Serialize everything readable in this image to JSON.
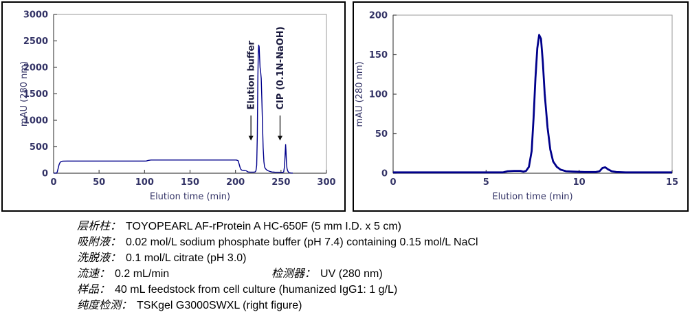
{
  "accent_colors": {
    "curve": "#00008B",
    "tick_label": "#333366",
    "plot_border": "#9a9a9a",
    "axis_line": "#4a4a4a",
    "panel_border": "#000000"
  },
  "chart_data": [
    {
      "type": "line",
      "name": "affinity-chromatogram",
      "title": "",
      "xlabel": "Elution time (min)",
      "ylabel": "mAU (280 nm)",
      "xlim": [
        0,
        300
      ],
      "ylim": [
        0,
        3000
      ],
      "x_ticks": [
        0,
        50,
        100,
        150,
        200,
        250,
        300
      ],
      "y_ticks": [
        0,
        500,
        1000,
        1500,
        2000,
        2500,
        3000
      ],
      "grid": false,
      "legend": "none",
      "line_color": "#00008B",
      "line_width": 1.4,
      "annotations": [
        {
          "text": "Elution buffer",
          "x": 217,
          "arrow_y_top": 1090,
          "arrow_y_tip": 615,
          "text_y_bottom": 1200
        },
        {
          "text": "CIP (0.1N-NaOH)",
          "x": 249,
          "arrow_y_top": 1090,
          "arrow_y_tip": 615,
          "text_y_bottom": 1200
        }
      ],
      "points": [
        [
          0,
          2
        ],
        [
          3,
          2
        ],
        [
          3.5,
          5
        ],
        [
          4,
          25
        ],
        [
          5,
          90
        ],
        [
          6,
          160
        ],
        [
          7,
          200
        ],
        [
          8,
          218
        ],
        [
          10,
          228
        ],
        [
          15,
          230
        ],
        [
          100,
          230
        ],
        [
          102,
          231
        ],
        [
          104,
          242
        ],
        [
          107,
          249
        ],
        [
          110,
          250
        ],
        [
          198,
          250
        ],
        [
          201,
          249
        ],
        [
          203,
          235
        ],
        [
          204,
          170
        ],
        [
          205,
          110
        ],
        [
          206,
          70
        ],
        [
          207,
          57
        ],
        [
          210,
          52
        ],
        [
          212,
          46
        ],
        [
          213,
          30
        ],
        [
          214,
          24
        ],
        [
          216,
          21
        ],
        [
          220,
          21
        ],
        [
          221.5,
          24
        ],
        [
          222.5,
          45
        ],
        [
          223.3,
          150
        ],
        [
          224,
          700
        ],
        [
          224.6,
          1800
        ],
        [
          225,
          2250
        ],
        [
          225.5,
          2420
        ],
        [
          226,
          2390
        ],
        [
          226.5,
          2200
        ],
        [
          227,
          2000
        ],
        [
          227.7,
          1910
        ],
        [
          228.3,
          1790
        ],
        [
          229,
          1400
        ],
        [
          229.7,
          900
        ],
        [
          230.4,
          480
        ],
        [
          231.2,
          220
        ],
        [
          232,
          120
        ],
        [
          233,
          85
        ],
        [
          234.5,
          60
        ],
        [
          236,
          45
        ],
        [
          238,
          32
        ],
        [
          240,
          24
        ],
        [
          243,
          20
        ],
        [
          248,
          18
        ],
        [
          252,
          17
        ],
        [
          253,
          25
        ],
        [
          254,
          140
        ],
        [
          254.7,
          420
        ],
        [
          255.1,
          540
        ],
        [
          255.5,
          430
        ],
        [
          256,
          200
        ],
        [
          256.6,
          90
        ],
        [
          257.4,
          45
        ],
        [
          258.2,
          22
        ],
        [
          259,
          11
        ],
        [
          260,
          6
        ],
        [
          261.5,
          3
        ],
        [
          263,
          2
        ]
      ]
    },
    {
      "type": "line",
      "name": "purity-check-chromatogram",
      "title": "",
      "xlabel": "Elution time (min)",
      "ylabel": "mAU (280 nm)",
      "xlim": [
        0,
        15
      ],
      "ylim": [
        0,
        200
      ],
      "x_ticks": [
        0,
        5,
        10,
        15
      ],
      "y_ticks": [
        0,
        50,
        100,
        150,
        200
      ],
      "grid": false,
      "legend": "none",
      "line_color": "#00008B",
      "line_width": 2.8,
      "annotations": [],
      "points": [
        [
          0,
          1
        ],
        [
          5.9,
          1
        ],
        [
          6.15,
          2.5
        ],
        [
          6.5,
          3
        ],
        [
          6.85,
          3
        ],
        [
          7.0,
          2
        ],
        [
          7.15,
          3
        ],
        [
          7.3,
          8
        ],
        [
          7.45,
          28
        ],
        [
          7.55,
          70
        ],
        [
          7.65,
          120
        ],
        [
          7.75,
          158
        ],
        [
          7.85,
          175
        ],
        [
          7.95,
          170
        ],
        [
          8.05,
          140
        ],
        [
          8.15,
          100
        ],
        [
          8.3,
          58
        ],
        [
          8.45,
          30
        ],
        [
          8.6,
          15
        ],
        [
          8.8,
          8
        ],
        [
          9.0,
          4.5
        ],
        [
          9.3,
          2.5
        ],
        [
          9.7,
          2
        ],
        [
          10.3,
          1.5
        ],
        [
          10.9,
          1.5
        ],
        [
          11.1,
          2.5
        ],
        [
          11.25,
          6.5
        ],
        [
          11.4,
          7.5
        ],
        [
          11.55,
          5
        ],
        [
          11.75,
          2.5
        ],
        [
          12.0,
          1.5
        ],
        [
          12.5,
          1
        ],
        [
          15,
          1
        ]
      ]
    }
  ],
  "caption": {
    "rows": [
      [
        {
          "label": "层析柱：",
          "text": "TOYOPEARL AF-rProtein A HC-650F (5 mm I.D. x 5 cm)"
        }
      ],
      [
        {
          "label": "吸附液：",
          "text": "0.02 mol/L sodium phosphate buffer (pH 7.4) containing 0.15 mol/L NaCl"
        }
      ],
      [
        {
          "label": "洗脱液：",
          "text": "0.1 mol/L citrate (pH 3.0)"
        }
      ],
      [
        {
          "label": "流速：",
          "text": "0.2 mL/min"
        },
        {
          "label": "检测器：",
          "text": "UV (280 nm)"
        }
      ],
      [
        {
          "label": "样品：",
          "text": "40 mL feedstock from cell culture (humanized IgG1: 1 g/L)"
        }
      ],
      [
        {
          "label": "纯度检测：",
          "text": "TSKgel G3000SWXL (right figure)"
        }
      ]
    ]
  }
}
